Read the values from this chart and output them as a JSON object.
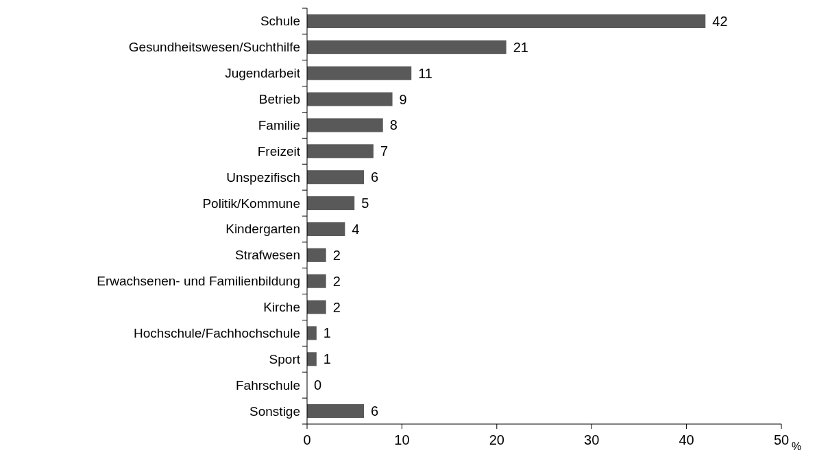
{
  "chart_data": {
    "type": "bar",
    "orientation": "horizontal",
    "categories": [
      "Schule",
      "Gesundheitswesen/Suchthilfe",
      "Jugendarbeit",
      "Betrieb",
      "Familie",
      "Freizeit",
      "Unspezifisch",
      "Politik/Kommune",
      "Kindergarten",
      "Strafwesen",
      "Erwachsenen- und Familienbildung",
      "Kirche",
      "Hochschule/Fachhochschule",
      "Sport",
      "Fahrschule",
      "Sonstige"
    ],
    "values": [
      42,
      21,
      11,
      9,
      8,
      7,
      6,
      5,
      4,
      2,
      2,
      2,
      1,
      1,
      0,
      6
    ],
    "color": "#595959",
    "xlim": [
      0,
      50
    ],
    "xticks": [
      0,
      10,
      20,
      30,
      40,
      50
    ],
    "xlabel": "%",
    "data_labels": true,
    "grid": false
  }
}
